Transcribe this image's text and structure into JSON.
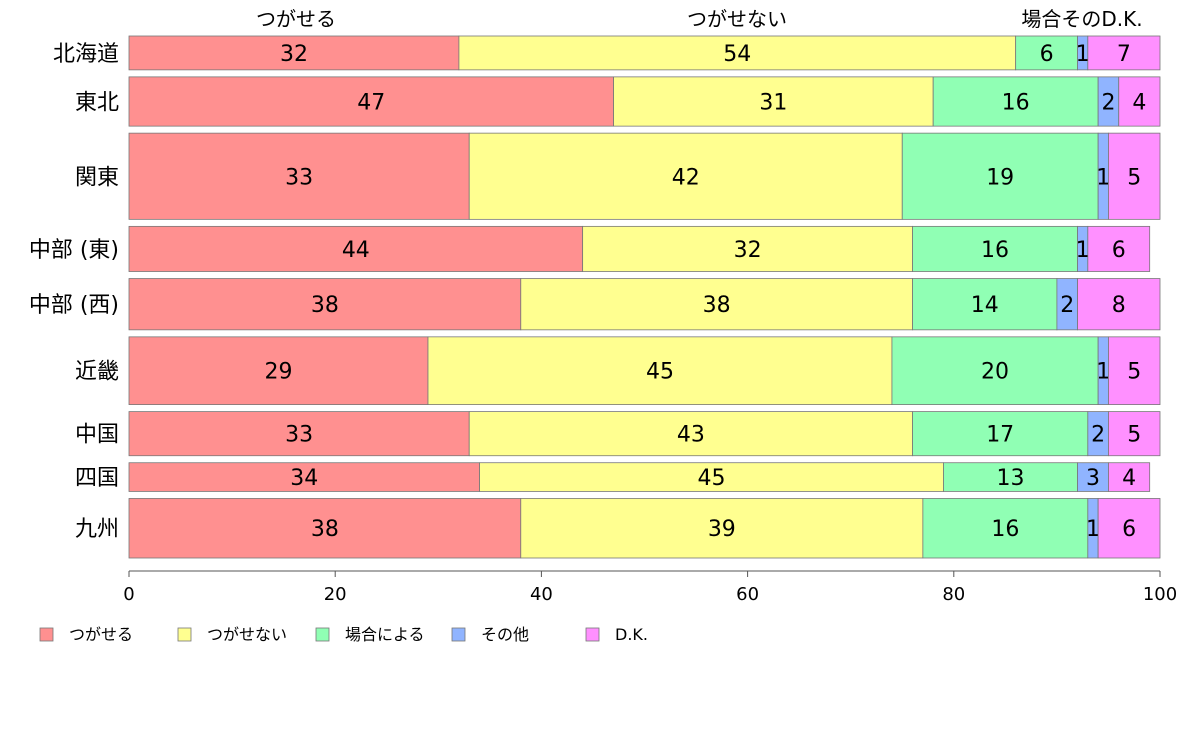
{
  "chart_data": {
    "type": "bar",
    "orientation": "horizontal",
    "stacked": true,
    "categories": [
      "北海道",
      "東北",
      "関東",
      "中部 (東)",
      "中部 (西)",
      "近畿",
      "中国",
      "四国",
      "九州"
    ],
    "bar_weights": [
      33,
      48,
      84,
      44,
      50,
      66,
      43,
      28,
      58
    ],
    "series": [
      {
        "name": "つがせる",
        "color": "#ff9090",
        "values": [
          32,
          47,
          33,
          44,
          38,
          29,
          33,
          34,
          38
        ]
      },
      {
        "name": "つがせない",
        "color": "#ffff90",
        "values": [
          54,
          31,
          42,
          32,
          38,
          45,
          43,
          45,
          39
        ]
      },
      {
        "name": "場合による",
        "color": "#90ffb4",
        "values": [
          6,
          16,
          19,
          16,
          14,
          20,
          17,
          13,
          16
        ]
      },
      {
        "name": "その他",
        "color": "#90b4ff",
        "values": [
          1,
          2,
          1,
          1,
          2,
          1,
          2,
          3,
          1
        ]
      },
      {
        "name": "D.K.",
        "color": "#ff90ff",
        "values": [
          7,
          4,
          5,
          6,
          8,
          5,
          5,
          4,
          6
        ]
      }
    ],
    "column_headers": [
      "つがせる",
      "つがせない",
      "場合そのD.K."
    ],
    "xlim": [
      0,
      100
    ],
    "xticks": [
      0,
      20,
      40,
      60,
      80,
      100
    ],
    "grid": false,
    "legend_position": "bottom"
  }
}
